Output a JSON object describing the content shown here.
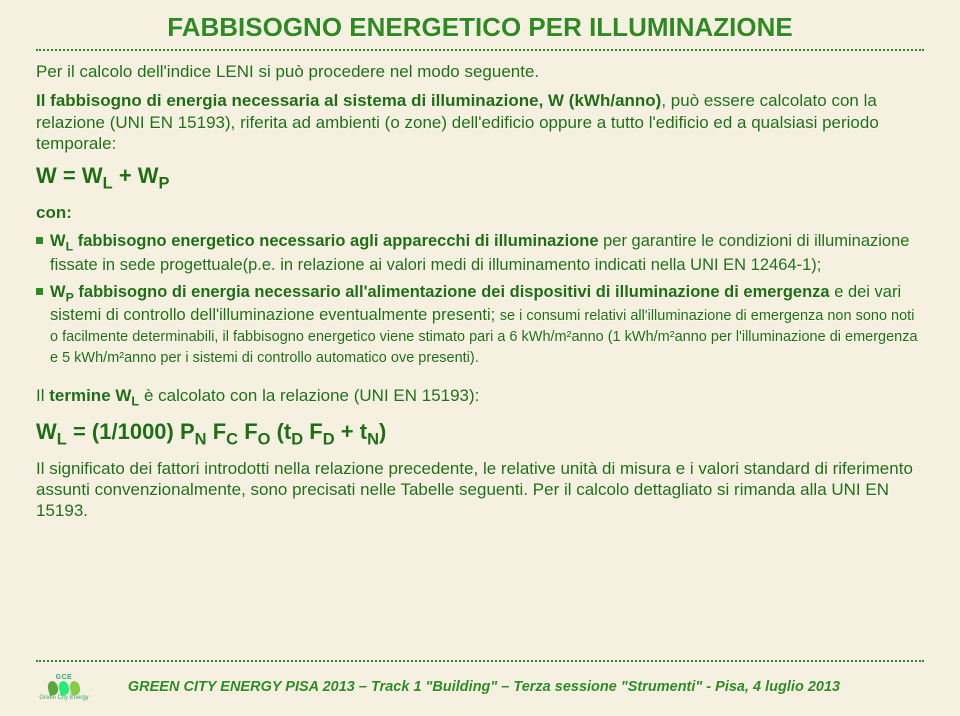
{
  "title": "FABBISOGNO ENERGETICO PER ILLUMINAZIONE",
  "p1": "Per il calcolo dell'indice LENI si può procedere nel modo seguente.",
  "p2_a": "Il fabbisogno di energia necessaria al sistema di illuminazione, W (kWh/anno)",
  "p2_b": ", può essere calcolato con la relazione (UNI EN 15193), riferita ad ambienti (o zone) dell'edificio oppure a tutto l'edificio ed a qualsiasi periodo temporale:",
  "formula1_pre": "W = W",
  "formula1_sub1": "L",
  "formula1_mid": " + W",
  "formula1_sub2": "P",
  "con": "con:",
  "b1_a": "W",
  "b1_sub": "L",
  "b1_b": " fabbisogno energetico necessario agli apparecchi di illuminazione",
  "b1_c": " per garantire le condizioni di illuminazione fissate in sede progettuale(p.e. in relazione ai valori medi di illuminamento indicati nella UNI EN 12464-1);",
  "b2_a": "W",
  "b2_sub": "P",
  "b2_b": " fabbisogno di energia necessario all'alimentazione dei dispositivi di illuminazione di emergenza",
  "b2_c": " e dei vari sistemi di controllo dell'illuminazione eventualmente presenti; ",
  "b2_small": "se i consumi relativi all'illuminazione di emergenza non sono noti o facilmente determinabili, il fabbisogno energetico viene stimato pari a 6 kWh/m²anno (1 kWh/m²anno per l'illuminazione di emergenza e 5 kWh/m²anno per i sistemi di controllo automatico ove presenti).",
  "p3_a": "Il ",
  "p3_b": "termine W",
  "p3_sub": "L",
  "p3_c": " è calcolato con la relazione (UNI EN 15193):",
  "formula2": "W<sub>L</sub> = (1/1000) P<sub>N</sub> F<sub>C</sub> F<sub>O</sub> (t<sub>D</sub> F<sub>D</sub> + t<sub>N</sub>)",
  "p4": "Il significato dei fattori introdotti nella relazione precedente, le relative unità di misura e i valori standard di riferimento assunti convenzionalmente, sono precisati nelle Tabelle seguenti. Per il calcolo dettagliato si rimanda alla UNI EN 15193.",
  "footer": "GREEN CITY ENERGY PISA 2013 – Track 1 \"Building\" – Terza sessione \"Strumenti\" - Pisa, 4 luglio 2013",
  "colors": {
    "text": "#2e8b1f",
    "bg": "#f5f0e0"
  }
}
